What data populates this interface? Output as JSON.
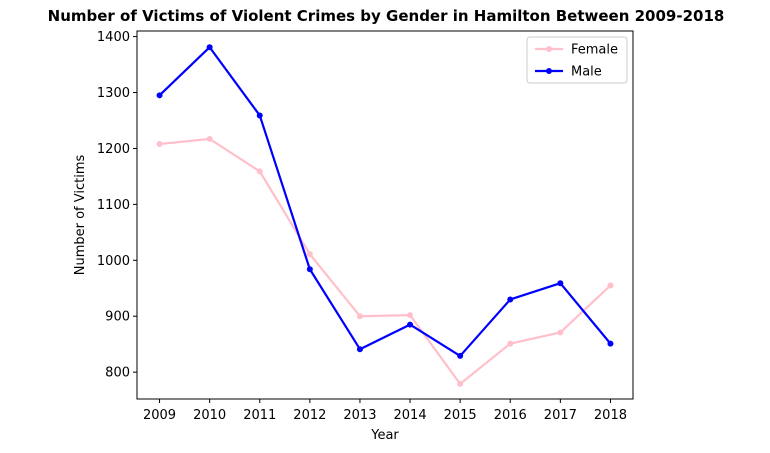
{
  "chart_data": {
    "type": "line",
    "title": "Number of Victims of Violent Crimes by Gender in Hamilton Between 2009-2018",
    "xlabel": "Year",
    "ylabel": "Number of Victims",
    "x": [
      "2009",
      "2010",
      "2011",
      "2012",
      "2013",
      "2014",
      "2015",
      "2016",
      "2017",
      "2018"
    ],
    "ylim": [
      752,
      1410
    ],
    "yticks": [
      800,
      900,
      1000,
      1100,
      1200,
      1300,
      1400
    ],
    "grid": false,
    "legend_position": "top-right",
    "series": [
      {
        "name": "Female",
        "color": "#ffc0cb",
        "values": [
          1208,
          1217,
          1159,
          1011,
          900,
          902,
          779,
          851,
          871,
          955
        ]
      },
      {
        "name": "Male",
        "color": "#0000ff",
        "values": [
          1295,
          1381,
          1259,
          984,
          841,
          885,
          829,
          930,
          959,
          851
        ]
      }
    ]
  }
}
